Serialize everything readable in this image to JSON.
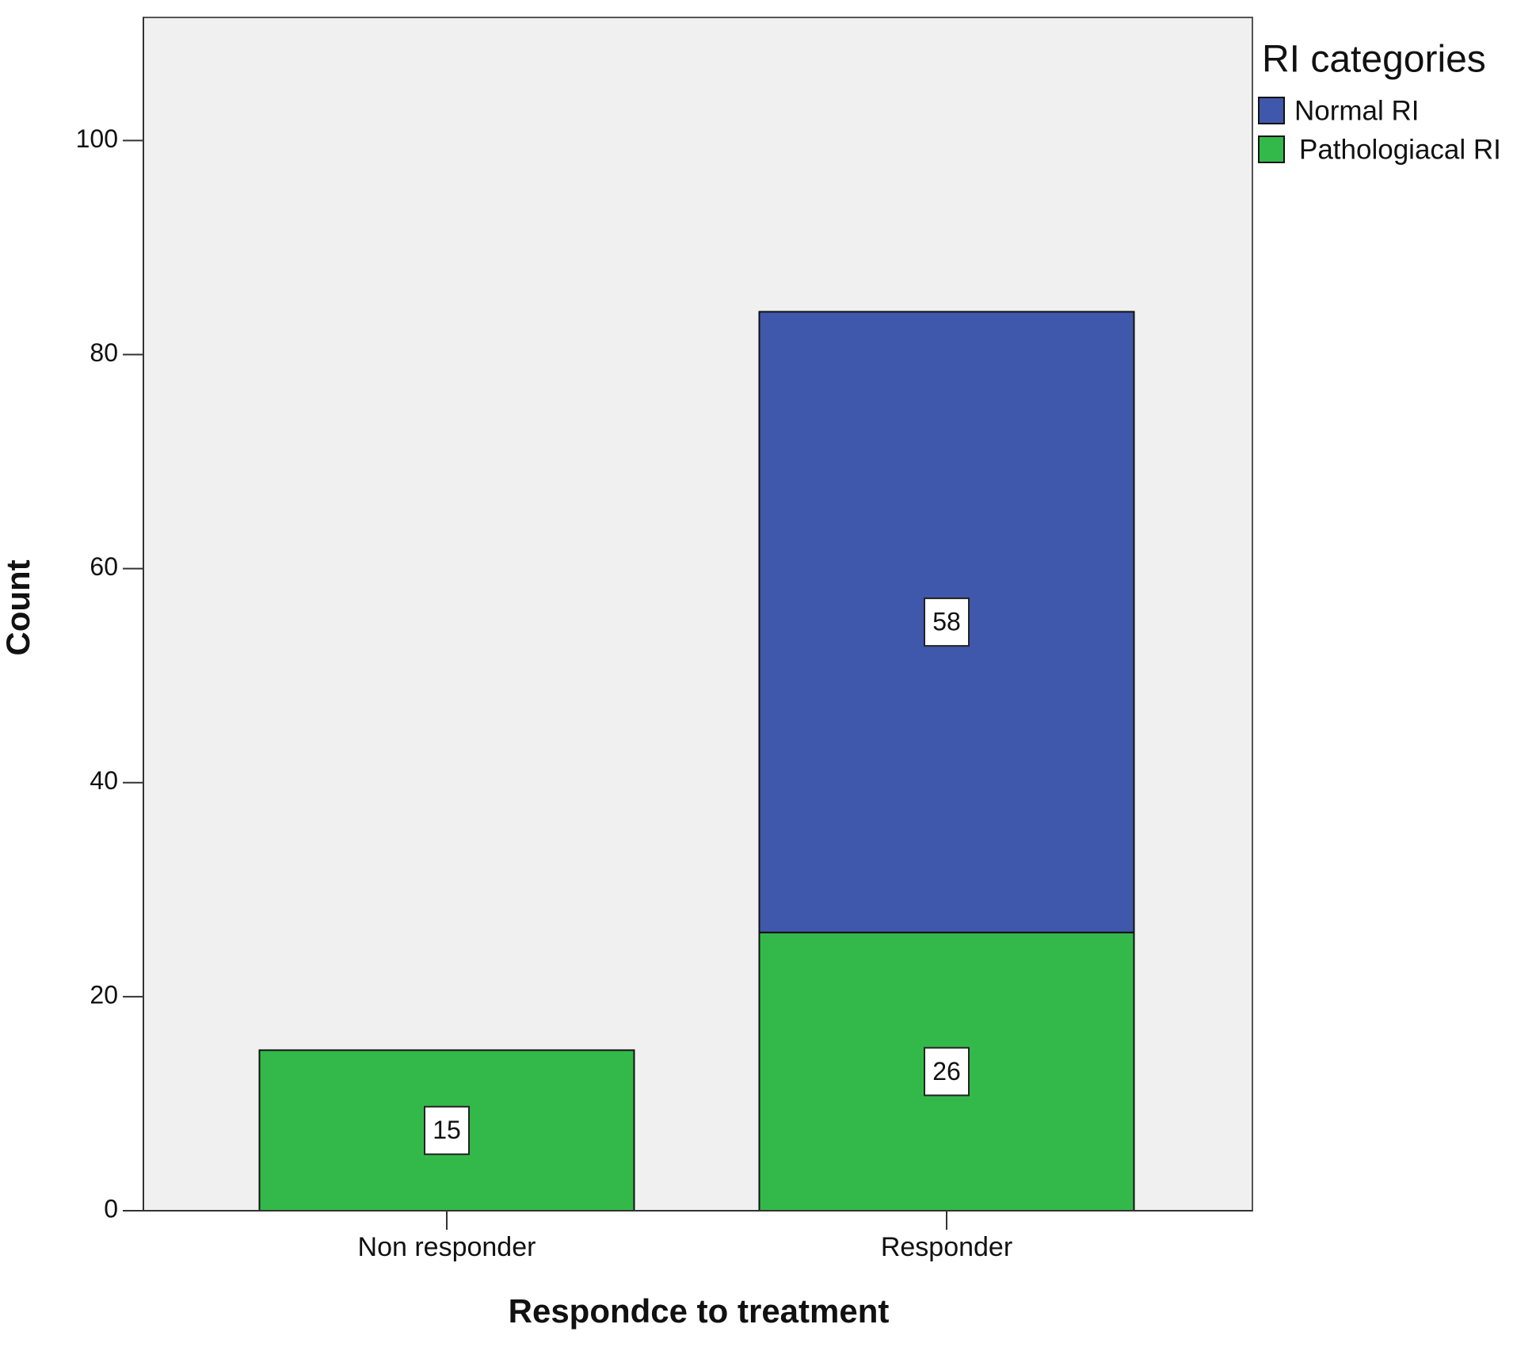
{
  "chart_data": {
    "type": "stacked_bar",
    "x_label": "Respondce to treatment",
    "y_label": "Count",
    "legend_title": "RI categories",
    "legend_position": "right",
    "categories": [
      "Non responder",
      "Responder"
    ],
    "series": [
      {
        "name": "Normal RI",
        "color": "#3f58ab",
        "values": [
          null,
          58
        ]
      },
      {
        "name": "Pathologiacal RI",
        "color": "#33b94a",
        "values": [
          15,
          26
        ]
      }
    ],
    "ylim": [
      0,
      111.5
    ],
    "yticks": [
      0,
      20,
      40,
      60,
      80,
      100
    ],
    "grid": false
  }
}
